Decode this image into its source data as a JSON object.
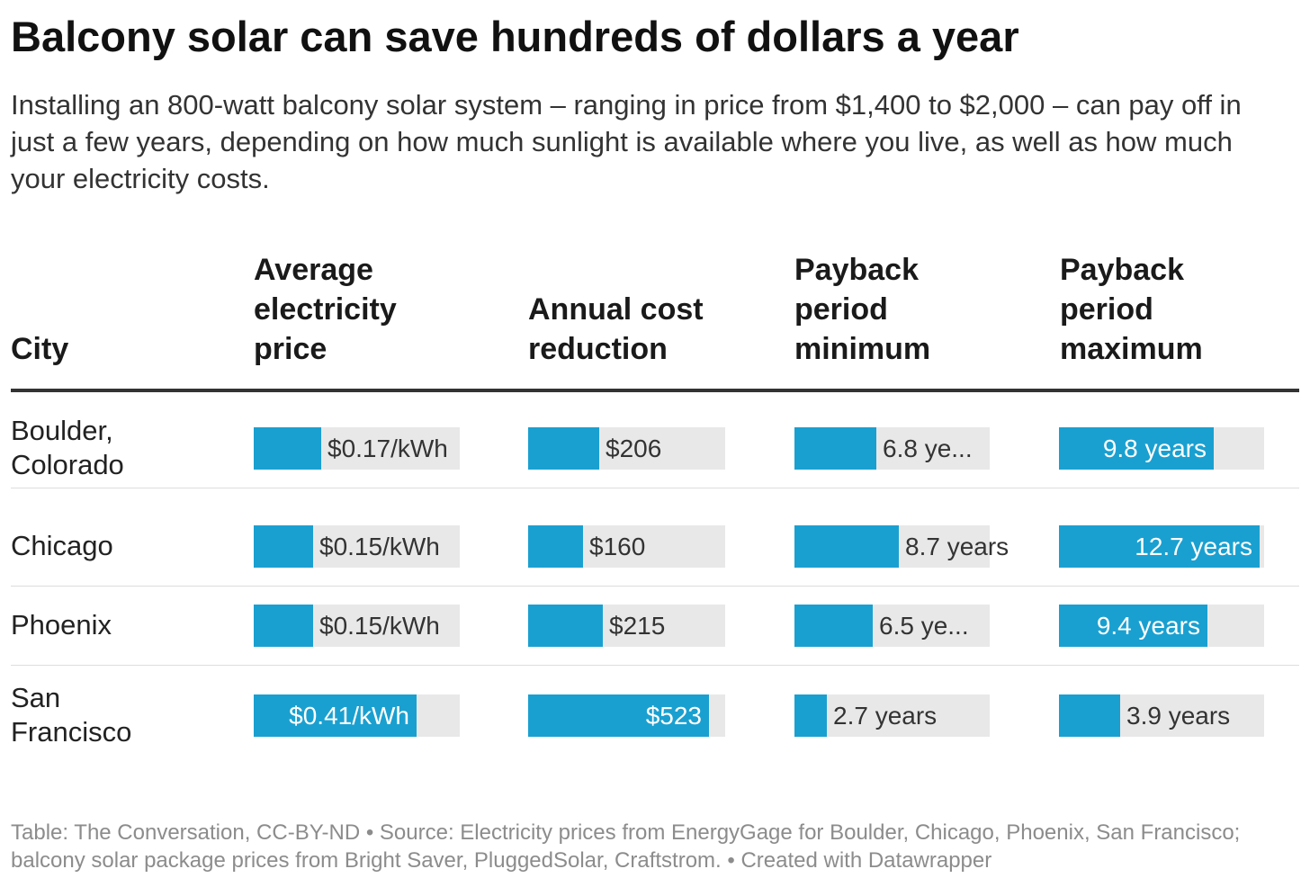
{
  "title": "Balcony solar can save hundreds of dollars a year",
  "subtitle": "Installing an 800-watt balcony solar system – ranging in price from $1,400 to $2,000 – can pay off in just a few years, depending on how much sunlight is available where you live, as well as how much your electricity costs.",
  "footer": "Table: The Conversation, CC-BY-ND • Source: Electricity prices from EnergyGage for Boulder, Chicago, Phoenix, San Francisco; balcony solar package prices from Bright Saver, PluggedSolar, Craftstrom. • Created with Datawrapper",
  "colors": {
    "bar": "#1aa0d0",
    "track": "#e8e8e8",
    "rule": "#333333"
  },
  "chart_data": {
    "type": "table",
    "columns": [
      {
        "key": "city",
        "label": "City"
      },
      {
        "key": "price",
        "label": "Average electricity price",
        "label_lines": "Average\nelectricity\nprice",
        "max": 0.52
      },
      {
        "key": "reduction",
        "label": "Annual cost reduction",
        "label_lines": "Annual cost\nreduction",
        "max": 570
      },
      {
        "key": "pb_min",
        "label": "Payback period minimum",
        "label_lines": "Payback\nperiod\nminimum",
        "max": 16.3
      },
      {
        "key": "pb_max",
        "label": "Payback period maximum",
        "label_lines": "Payback\nperiod\nmaximum",
        "max": 13.0
      }
    ],
    "rows": [
      {
        "city": "Boulder, Colorado",
        "city_lines": "Boulder,\nColorado",
        "price": 0.17,
        "price_label": "$0.17/kWh",
        "reduction": 206,
        "reduction_label": "$206",
        "pb_min": 6.8,
        "pb_min_label": "6.8 ye...",
        "pb_max": 9.8,
        "pb_max_label": "9.8 years"
      },
      {
        "city": "Chicago",
        "city_lines": "Chicago",
        "price": 0.15,
        "price_label": "$0.15/kWh",
        "reduction": 160,
        "reduction_label": "$160",
        "pb_min": 8.7,
        "pb_min_label": "8.7 years",
        "pb_max": 12.7,
        "pb_max_label": "12.7 years"
      },
      {
        "city": "Phoenix",
        "city_lines": "Phoenix",
        "price": 0.15,
        "price_label": "$0.15/kWh",
        "reduction": 215,
        "reduction_label": "$215",
        "pb_min": 6.5,
        "pb_min_label": "6.5 ye...",
        "pb_max": 9.4,
        "pb_max_label": "9.4 years"
      },
      {
        "city": "San Francisco",
        "city_lines": "San\nFrancisco",
        "price": 0.41,
        "price_label": "$0.41/kWh",
        "reduction": 523,
        "reduction_label": "$523",
        "pb_min": 2.7,
        "pb_min_label": "2.7 years",
        "pb_max": 3.9,
        "pb_max_label": "3.9 years"
      }
    ]
  }
}
